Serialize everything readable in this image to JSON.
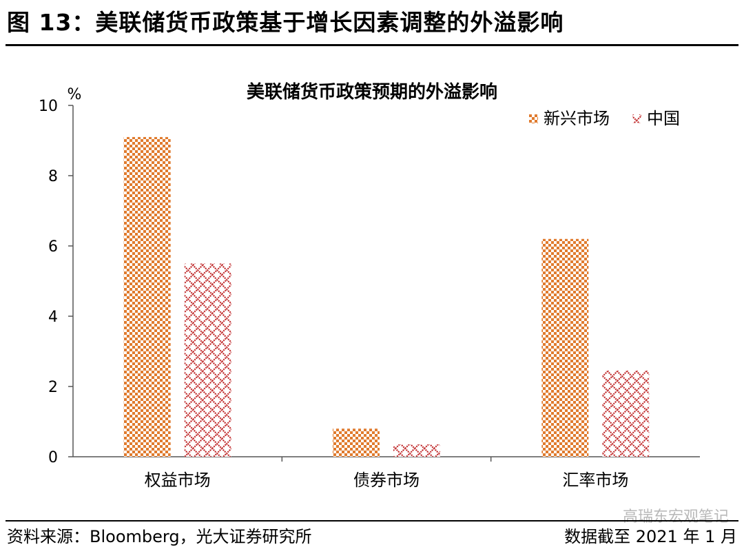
{
  "figure": {
    "title": "图 13：美联储货币政策基于增长因素调整的外溢影响",
    "source": "资料来源：Bloomberg，光大证券研究所",
    "date_note": "数据截至 2021 年 1 月",
    "watermark": "高瑞东宏观笔记"
  },
  "colors": {
    "emerging": "#E07B2E",
    "china": "#C0292A",
    "axis": "#555555"
  },
  "chart_data": {
    "type": "bar",
    "title": "美联储货币政策预期的外溢影响",
    "ylabel": "%",
    "xlabel": "",
    "categories": [
      "权益市场",
      "债券市场",
      "汇率市场"
    ],
    "series": [
      {
        "name": "新兴市场",
        "values": [
          9.1,
          0.8,
          6.2
        ],
        "pattern": "checker"
      },
      {
        "name": "中国",
        "values": [
          5.5,
          0.35,
          2.45
        ],
        "pattern": "lattice"
      }
    ],
    "ylim": [
      0,
      10
    ],
    "yticks": [
      "0",
      "2",
      "4",
      "6",
      "8",
      "10"
    ],
    "grid": false,
    "legend": "top-right"
  }
}
